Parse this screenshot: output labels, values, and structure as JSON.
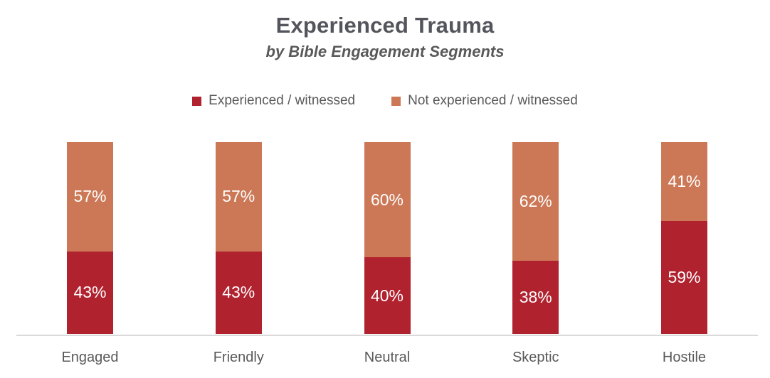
{
  "title": "Experienced Trauma",
  "subtitle": "by Bible Engagement Segments",
  "legend": {
    "items": [
      {
        "label": "Experienced / witnessed",
        "color": "#b1222f"
      },
      {
        "label": "Not experienced / witnessed",
        "color": "#cc7856"
      }
    ]
  },
  "chart_data": {
    "type": "bar",
    "stacked": true,
    "orientation": "vertical",
    "categories": [
      "Engaged",
      "Friendly",
      "Neutral",
      "Skeptic",
      "Hostile"
    ],
    "series": [
      {
        "name": "Experienced / witnessed",
        "color": "#b1222f",
        "values": [
          43,
          43,
          40,
          38,
          59
        ]
      },
      {
        "name": "Not experienced / witnessed",
        "color": "#cc7856",
        "values": [
          57,
          57,
          60,
          62,
          41
        ]
      }
    ],
    "value_suffix": "%",
    "data_label_color": "#ffffff",
    "ylim": [
      0,
      100
    ],
    "grid": false,
    "y_axis_visible": false,
    "legend_position": "top",
    "title": "Experienced Trauma",
    "subtitle": "by Bible Engagement Segments"
  },
  "colors": {
    "title_text": "#54545c",
    "body_text": "#595959",
    "axis_line": "#d9d9d9",
    "background": "#ffffff"
  }
}
